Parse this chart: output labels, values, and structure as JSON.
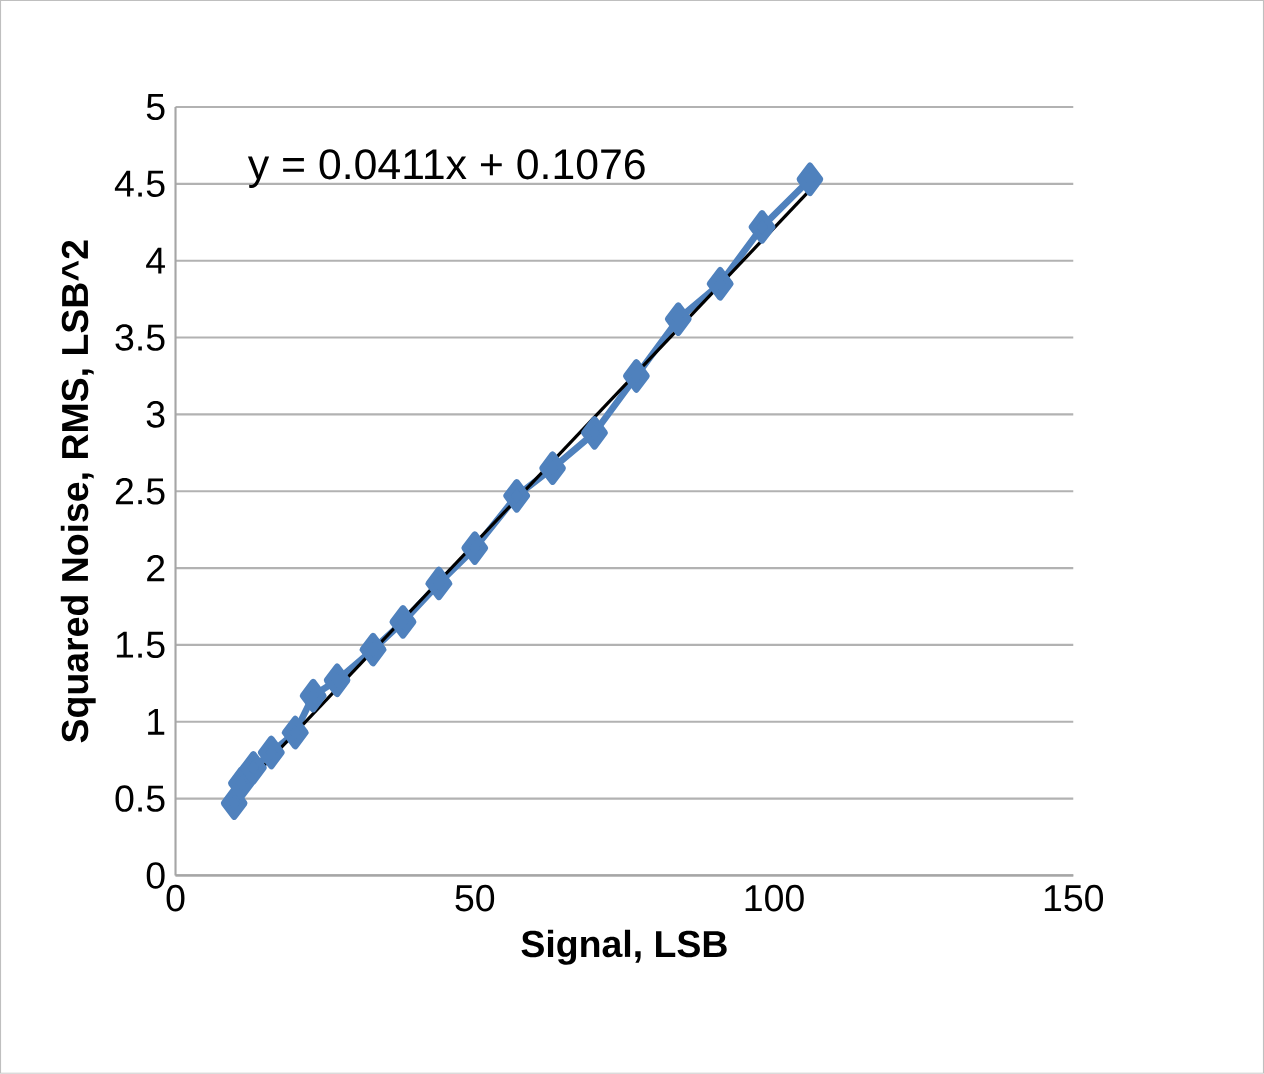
{
  "chart_data": {
    "type": "line",
    "xlabel": "Signal, LSB",
    "ylabel": "Squared Noise, RMS, LSB^2",
    "xlim": [
      0,
      150
    ],
    "xticks": [
      0,
      50,
      100,
      150
    ],
    "ylim": [
      0,
      5
    ],
    "yticks": [
      0,
      0.5,
      1,
      1.5,
      2,
      2.5,
      3,
      3.5,
      4,
      4.5,
      5
    ],
    "grid": "y",
    "marker": "diamond",
    "series": [
      {
        "color": "#4f81bd",
        "x": [
          9.8,
          11,
          13,
          16,
          20,
          23,
          27,
          33,
          38,
          44,
          50,
          57,
          63,
          70,
          77,
          84,
          91,
          98,
          106
        ],
        "values": [
          0.47,
          0.6,
          0.7,
          0.8,
          0.93,
          1.17,
          1.27,
          1.47,
          1.65,
          1.9,
          2.13,
          2.47,
          2.65,
          2.88,
          3.25,
          3.62,
          3.85,
          4.22,
          4.53
        ]
      },
      {
        "color": "#000000",
        "marker": "none",
        "x": [
          9.8,
          106
        ],
        "values": [
          0.51,
          4.46
        ]
      }
    ],
    "annotations": [
      "y = 0.0411x + 0.1076"
    ]
  }
}
